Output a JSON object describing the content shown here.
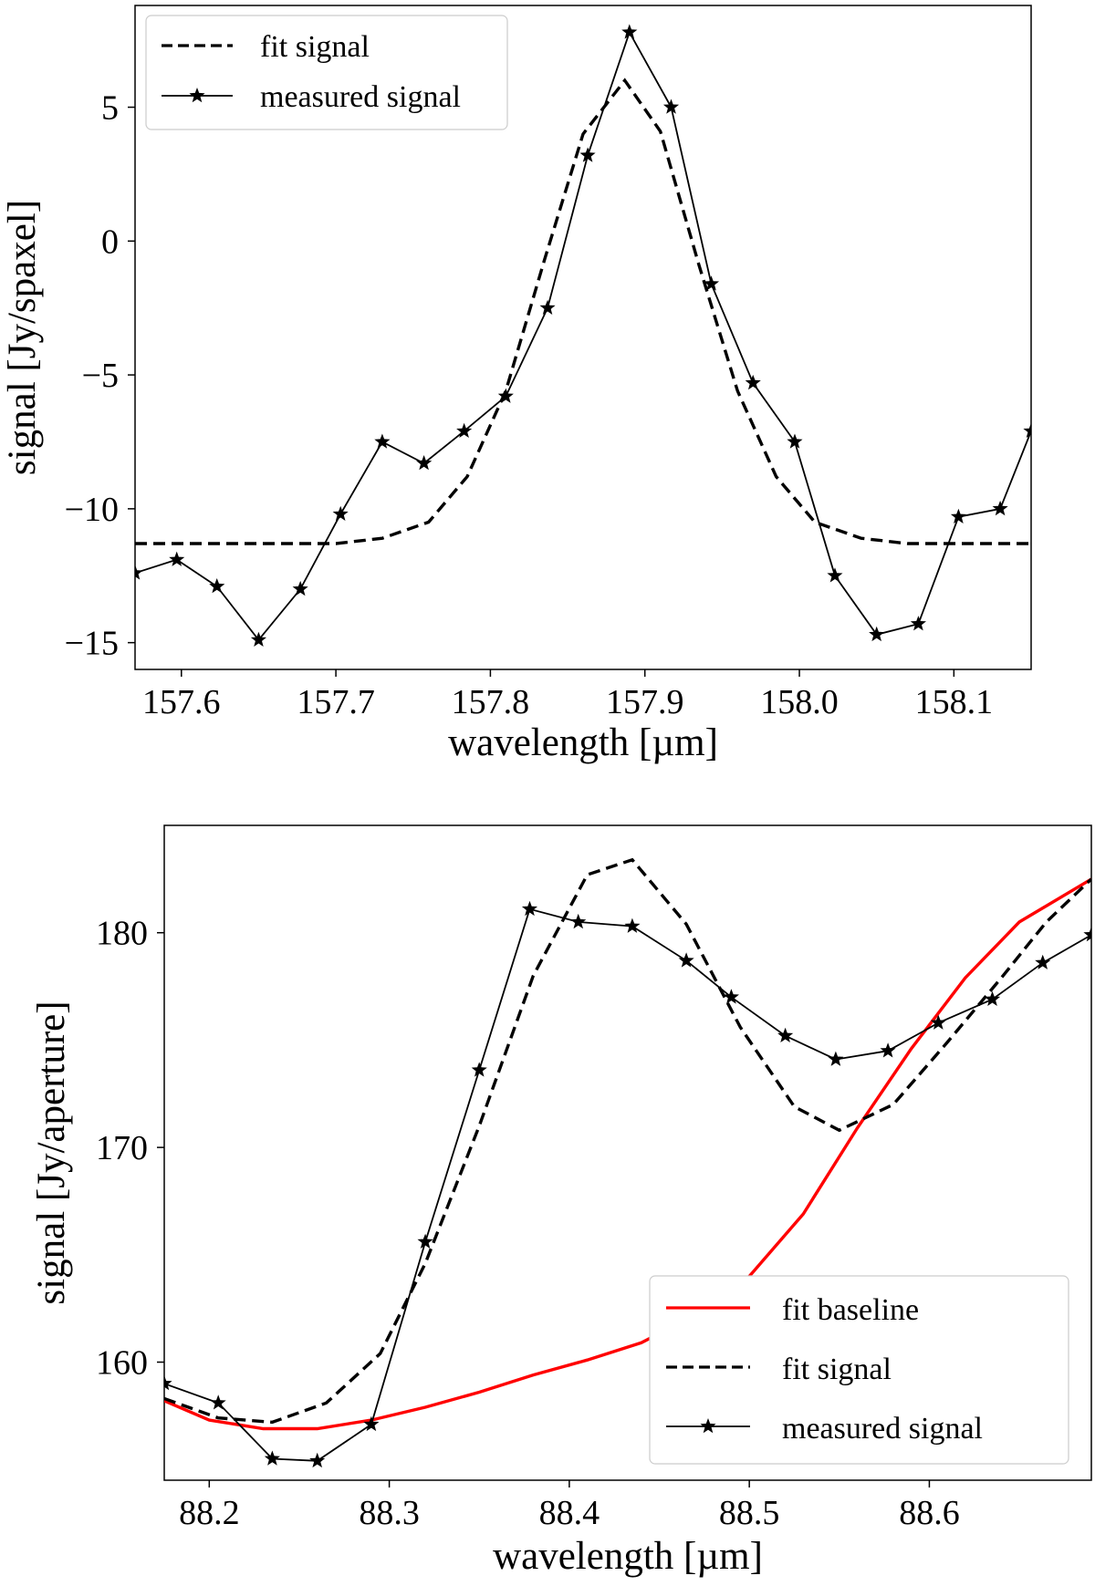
{
  "chart_data": [
    {
      "type": "line",
      "xlabel": "wavelength [µm]",
      "ylabel": "signal [Jy/spaxel]",
      "xlim": [
        157.57,
        158.15
      ],
      "ylim": [
        -16.0,
        8.8
      ],
      "xticks": [
        157.6,
        157.7,
        157.8,
        157.9,
        158.0,
        158.1
      ],
      "xtick_labels": [
        "157.6",
        "157.7",
        "157.8",
        "157.9",
        "158.0",
        "158.1"
      ],
      "yticks": [
        -15,
        -10,
        -5,
        0,
        5
      ],
      "ytick_labels": [
        "−15",
        "−10",
        "−5",
        "0",
        "5"
      ],
      "legend_position": "top-left",
      "series": [
        {
          "name": "fit signal",
          "style": "dashed",
          "color": "#000000",
          "x": [
            157.57,
            157.6,
            157.65,
            157.7,
            157.73,
            157.76,
            157.785,
            157.81,
            157.835,
            157.86,
            157.887,
            157.91,
            157.935,
            157.96,
            157.985,
            158.01,
            158.04,
            158.07,
            158.1,
            158.15
          ],
          "y": [
            -11.3,
            -11.3,
            -11.3,
            -11.3,
            -11.1,
            -10.5,
            -8.8,
            -5.6,
            -0.7,
            4.0,
            6.0,
            4.1,
            -0.9,
            -5.6,
            -8.8,
            -10.5,
            -11.1,
            -11.3,
            -11.3,
            -11.3
          ]
        },
        {
          "name": "measured signal",
          "style": "solid-star",
          "color": "#000000",
          "x": [
            157.57,
            157.597,
            157.623,
            157.65,
            157.677,
            157.703,
            157.73,
            157.757,
            157.783,
            157.81,
            157.837,
            157.863,
            157.89,
            157.917,
            157.943,
            157.97,
            157.997,
            158.023,
            158.05,
            158.077,
            158.103,
            158.13,
            158.15
          ],
          "y": [
            -12.4,
            -11.9,
            -12.9,
            -14.9,
            -13.0,
            -10.2,
            -7.5,
            -8.3,
            -7.1,
            -5.8,
            -2.5,
            3.2,
            7.8,
            5.0,
            -1.6,
            -5.3,
            -7.5,
            -12.5,
            -14.7,
            -14.3,
            -10.3,
            -10.0,
            -7.1
          ]
        }
      ]
    },
    {
      "type": "line",
      "xlabel": "wavelength [µm]",
      "ylabel": "signal [Jy/aperture]",
      "xlim": [
        88.175,
        88.69
      ],
      "ylim": [
        154.5,
        185.0
      ],
      "xticks": [
        88.2,
        88.3,
        88.4,
        88.5,
        88.6
      ],
      "xtick_labels": [
        "88.2",
        "88.3",
        "88.4",
        "88.5",
        "88.6"
      ],
      "yticks": [
        160,
        170,
        180
      ],
      "ytick_labels": [
        "160",
        "170",
        "180"
      ],
      "legend_position": "bottom-right",
      "series": [
        {
          "name": "fit baseline",
          "style": "solid",
          "color": "#ff0000",
          "x": [
            88.175,
            88.2,
            88.23,
            88.26,
            88.29,
            88.32,
            88.35,
            88.38,
            88.41,
            88.44,
            88.47,
            88.5,
            88.53,
            88.56,
            88.59,
            88.62,
            88.65,
            88.69
          ],
          "y": [
            158.2,
            157.3,
            156.9,
            156.9,
            157.3,
            157.9,
            158.6,
            159.4,
            160.1,
            160.9,
            162.2,
            164.0,
            166.9,
            170.9,
            174.6,
            177.9,
            180.5,
            182.5
          ]
        },
        {
          "name": "fit signal",
          "style": "dashed",
          "color": "#000000",
          "x": [
            88.175,
            88.205,
            88.235,
            88.265,
            88.295,
            88.32,
            88.35,
            88.38,
            88.41,
            88.435,
            88.465,
            88.495,
            88.525,
            88.55,
            88.58,
            88.61,
            88.64,
            88.665,
            88.69
          ],
          "y": [
            158.3,
            157.4,
            157.2,
            158.1,
            160.4,
            164.6,
            171.0,
            178.0,
            182.7,
            183.4,
            180.4,
            175.6,
            171.9,
            170.8,
            172.0,
            174.9,
            177.9,
            180.5,
            182.5
          ]
        },
        {
          "name": "measured signal",
          "style": "solid-star",
          "color": "#000000",
          "x": [
            88.175,
            88.205,
            88.235,
            88.26,
            88.29,
            88.32,
            88.35,
            88.378,
            88.405,
            88.435,
            88.465,
            88.49,
            88.52,
            88.548,
            88.577,
            88.605,
            88.635,
            88.663,
            88.69
          ],
          "y": [
            159.0,
            158.1,
            155.5,
            155.4,
            157.1,
            165.6,
            173.6,
            181.1,
            180.5,
            180.3,
            178.7,
            177.0,
            175.2,
            174.1,
            174.5,
            175.8,
            176.9,
            178.6,
            179.9
          ]
        }
      ]
    }
  ]
}
